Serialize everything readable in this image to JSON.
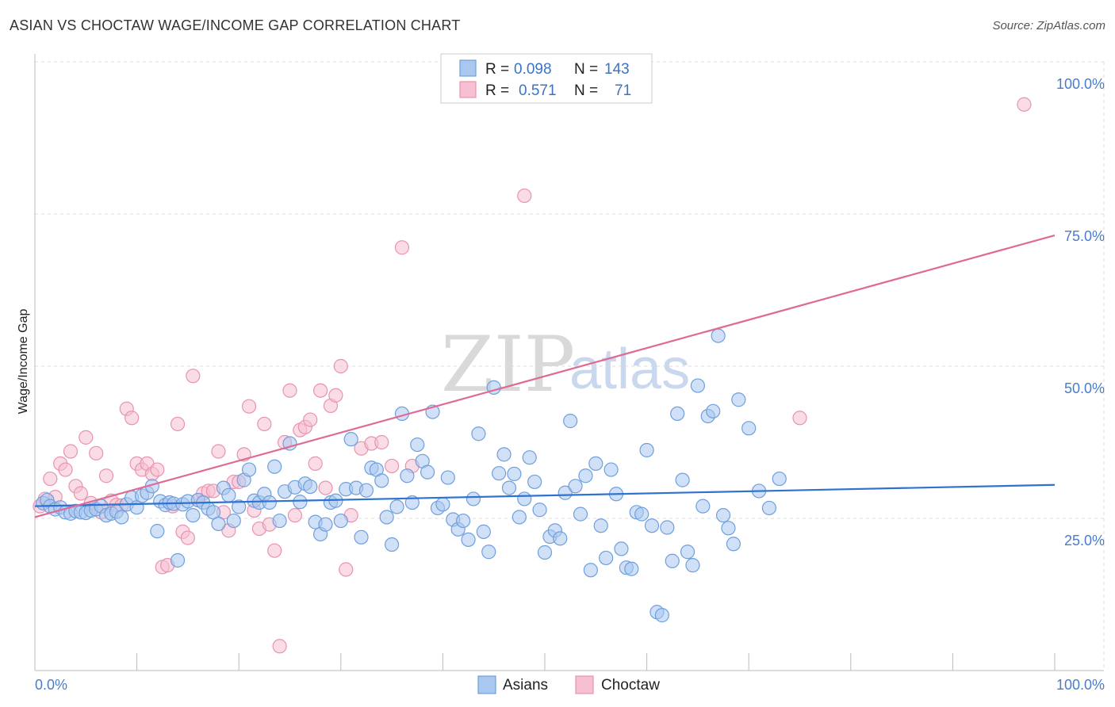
{
  "title": "ASIAN VS CHOCTAW WAGE/INCOME GAP CORRELATION CHART",
  "source": "Source: ZipAtlas.com",
  "watermark": {
    "zip": "ZIP",
    "atlas": "atlas"
  },
  "colors": {
    "asians_fill": "#a9c8f0",
    "asians_stroke": "#6f9fdc",
    "asians_line": "#2f72d0",
    "choctaw_fill": "#f6bfd2",
    "choctaw_stroke": "#e893b0",
    "choctaw_line": "#e06a96",
    "grid": "#dddddd",
    "tick_label": "#4a7cc9"
  },
  "legend_top": {
    "rows": [
      {
        "r_label": "R =",
        "r_value": "0.098",
        "n_label": "N =",
        "n_value": "143"
      },
      {
        "r_label": "R =",
        "r_value": "0.571",
        "n_label": "N =",
        "n_value": "71"
      }
    ]
  },
  "legend_bottom": {
    "asians": "Asians",
    "choctaw": "Choctaw"
  },
  "chart_data": {
    "type": "scatter",
    "title": "ASIAN VS CHOCTAW WAGE/INCOME GAP CORRELATION CHART",
    "xlabel": "",
    "ylabel": "Wage/Income Gap",
    "xlim": [
      0,
      100
    ],
    "ylim": [
      0,
      100
    ],
    "x_tick_labels": [
      "0.0%",
      "100.0%"
    ],
    "y_tick_labels": [
      "25.0%",
      "50.0%",
      "75.0%",
      "100.0%"
    ],
    "y_ticks": [
      25,
      50,
      75,
      100
    ],
    "grid": true,
    "legend_position": "top-center",
    "series": [
      {
        "name": "Asians",
        "r": 0.098,
        "n": 143,
        "trend": {
          "x": [
            0,
            100
          ],
          "y": [
            27.0,
            30.5
          ]
        },
        "points": [
          [
            0.8,
            27.5
          ],
          [
            1.2,
            28.0
          ],
          [
            1.5,
            27.0
          ],
          [
            2.0,
            26.5
          ],
          [
            2.5,
            26.8
          ],
          [
            3.0,
            26.0
          ],
          [
            3.5,
            25.8
          ],
          [
            4.0,
            26.2
          ],
          [
            4.5,
            26.0
          ],
          [
            5.0,
            25.9
          ],
          [
            5.5,
            26.3
          ],
          [
            6.0,
            26.5
          ],
          [
            6.5,
            27.0
          ],
          [
            7.0,
            25.5
          ],
          [
            7.5,
            25.8
          ],
          [
            8.0,
            26.1
          ],
          [
            8.5,
            25.2
          ],
          [
            9.0,
            27.3
          ],
          [
            9.5,
            28.4
          ],
          [
            10.0,
            26.8
          ],
          [
            10.5,
            28.7
          ],
          [
            11.0,
            29.2
          ],
          [
            11.5,
            30.3
          ],
          [
            12.0,
            22.9
          ],
          [
            12.3,
            27.8
          ],
          [
            12.8,
            27.2
          ],
          [
            13.2,
            27.6
          ],
          [
            13.6,
            27.4
          ],
          [
            14.0,
            18.1
          ],
          [
            14.5,
            27.3
          ],
          [
            15.0,
            27.8
          ],
          [
            15.5,
            25.5
          ],
          [
            16.0,
            28.0
          ],
          [
            16.5,
            27.6
          ],
          [
            17.0,
            26.6
          ],
          [
            17.5,
            26.0
          ],
          [
            18.0,
            24.1
          ],
          [
            18.5,
            30.0
          ],
          [
            19.0,
            28.8
          ],
          [
            19.5,
            24.6
          ],
          [
            20.0,
            26.9
          ],
          [
            20.5,
            31.3
          ],
          [
            21.0,
            33.0
          ],
          [
            21.5,
            27.9
          ],
          [
            22.0,
            27.6
          ],
          [
            22.5,
            29.0
          ],
          [
            23.0,
            27.6
          ],
          [
            23.5,
            33.5
          ],
          [
            24.0,
            24.6
          ],
          [
            24.5,
            29.4
          ],
          [
            25.0,
            37.3
          ],
          [
            25.5,
            30.1
          ],
          [
            26.0,
            27.7
          ],
          [
            26.5,
            30.7
          ],
          [
            27.0,
            30.2
          ],
          [
            27.5,
            24.4
          ],
          [
            28.0,
            22.4
          ],
          [
            28.5,
            24.0
          ],
          [
            29.0,
            27.6
          ],
          [
            29.5,
            27.9
          ],
          [
            30.0,
            24.6
          ],
          [
            30.5,
            29.8
          ],
          [
            31.0,
            38.0
          ],
          [
            31.5,
            30.0
          ],
          [
            32.0,
            21.9
          ],
          [
            32.5,
            29.6
          ],
          [
            33.0,
            33.3
          ],
          [
            33.5,
            33.0
          ],
          [
            34.0,
            31.2
          ],
          [
            34.5,
            25.2
          ],
          [
            35.0,
            20.7
          ],
          [
            35.5,
            26.9
          ],
          [
            36.0,
            42.2
          ],
          [
            36.5,
            32.0
          ],
          [
            37.0,
            27.6
          ],
          [
            37.5,
            37.1
          ],
          [
            38.0,
            34.4
          ],
          [
            38.5,
            32.6
          ],
          [
            39.0,
            42.5
          ],
          [
            39.5,
            26.7
          ],
          [
            40.0,
            27.3
          ],
          [
            40.5,
            31.7
          ],
          [
            41.0,
            24.8
          ],
          [
            41.5,
            23.2
          ],
          [
            42.0,
            24.6
          ],
          [
            42.5,
            21.5
          ],
          [
            43.0,
            28.2
          ],
          [
            43.5,
            38.9
          ],
          [
            44.0,
            22.8
          ],
          [
            44.5,
            19.5
          ],
          [
            45.0,
            46.5
          ],
          [
            45.5,
            32.4
          ],
          [
            46.0,
            35.5
          ],
          [
            46.5,
            30.0
          ],
          [
            47.0,
            32.3
          ],
          [
            47.5,
            25.2
          ],
          [
            48.0,
            28.2
          ],
          [
            48.5,
            35.0
          ],
          [
            49.0,
            31.0
          ],
          [
            49.5,
            26.4
          ],
          [
            50.0,
            19.4
          ],
          [
            50.5,
            22.0
          ],
          [
            51.0,
            23.0
          ],
          [
            51.5,
            21.7
          ],
          [
            52.0,
            29.2
          ],
          [
            52.5,
            41.0
          ],
          [
            53.0,
            30.3
          ],
          [
            53.5,
            25.7
          ],
          [
            54.0,
            32.0
          ],
          [
            54.5,
            16.5
          ],
          [
            55.0,
            34.0
          ],
          [
            55.5,
            23.8
          ],
          [
            56.0,
            18.5
          ],
          [
            56.5,
            33.0
          ],
          [
            57.0,
            29.0
          ],
          [
            57.5,
            20.0
          ],
          [
            58.0,
            16.9
          ],
          [
            58.5,
            16.7
          ],
          [
            59.0,
            26.0
          ],
          [
            59.5,
            25.7
          ],
          [
            60.0,
            36.2
          ],
          [
            60.5,
            23.8
          ],
          [
            61.0,
            9.6
          ],
          [
            61.5,
            9.1
          ],
          [
            62.0,
            23.5
          ],
          [
            62.5,
            18.0
          ],
          [
            63.0,
            42.2
          ],
          [
            63.5,
            31.3
          ],
          [
            64.0,
            19.5
          ],
          [
            64.5,
            17.3
          ],
          [
            65.0,
            46.8
          ],
          [
            65.5,
            27.0
          ],
          [
            66.0,
            41.8
          ],
          [
            66.5,
            42.6
          ],
          [
            67.0,
            55.0
          ],
          [
            67.5,
            25.5
          ],
          [
            68.0,
            23.4
          ],
          [
            68.5,
            20.8
          ],
          [
            69.0,
            44.5
          ],
          [
            70.0,
            39.8
          ],
          [
            71.0,
            29.5
          ],
          [
            72.0,
            26.7
          ],
          [
            73.0,
            31.5
          ]
        ]
      },
      {
        "name": "Choctaw",
        "r": 0.571,
        "n": 71,
        "trend": {
          "x": [
            0,
            100
          ],
          "y": [
            25.2,
            71.5
          ]
        },
        "points": [
          [
            0.5,
            27.0
          ],
          [
            1.0,
            28.2
          ],
          [
            1.5,
            31.5
          ],
          [
            2.0,
            28.5
          ],
          [
            2.5,
            34.0
          ],
          [
            3.0,
            33.0
          ],
          [
            3.5,
            36.0
          ],
          [
            4.0,
            30.3
          ],
          [
            4.5,
            29.1
          ],
          [
            5.0,
            38.3
          ],
          [
            5.5,
            27.5
          ],
          [
            6.0,
            35.7
          ],
          [
            6.5,
            26.0
          ],
          [
            7.0,
            32.0
          ],
          [
            7.5,
            27.9
          ],
          [
            8.0,
            27.2
          ],
          [
            8.5,
            27.1
          ],
          [
            9.0,
            43.0
          ],
          [
            9.5,
            41.5
          ],
          [
            10.0,
            34.0
          ],
          [
            10.5,
            33.0
          ],
          [
            11.0,
            34.0
          ],
          [
            11.5,
            32.3
          ],
          [
            12.0,
            33.0
          ],
          [
            12.5,
            17.0
          ],
          [
            13.0,
            17.3
          ],
          [
            13.5,
            27.0
          ],
          [
            14.0,
            40.5
          ],
          [
            14.5,
            22.8
          ],
          [
            15.0,
            21.8
          ],
          [
            15.5,
            48.4
          ],
          [
            16.0,
            28.0
          ],
          [
            16.5,
            29.1
          ],
          [
            17.0,
            29.5
          ],
          [
            17.5,
            29.5
          ],
          [
            18.0,
            36.0
          ],
          [
            18.5,
            26.0
          ],
          [
            19.0,
            23.0
          ],
          [
            19.5,
            31.0
          ],
          [
            20.0,
            31.0
          ],
          [
            20.5,
            35.5
          ],
          [
            21.0,
            43.4
          ],
          [
            21.5,
            26.3
          ],
          [
            22.0,
            23.3
          ],
          [
            22.5,
            40.5
          ],
          [
            23.0,
            24.0
          ],
          [
            23.5,
            19.7
          ],
          [
            24.0,
            4.0
          ],
          [
            24.5,
            37.5
          ],
          [
            25.0,
            46.0
          ],
          [
            25.5,
            25.5
          ],
          [
            26.0,
            39.5
          ],
          [
            26.5,
            40.0
          ],
          [
            27.0,
            41.2
          ],
          [
            27.5,
            34.0
          ],
          [
            28.0,
            46.0
          ],
          [
            28.5,
            30.0
          ],
          [
            29.0,
            43.5
          ],
          [
            29.5,
            45.2
          ],
          [
            30.0,
            50.0
          ],
          [
            30.5,
            16.6
          ],
          [
            31.0,
            25.5
          ],
          [
            32.0,
            36.5
          ],
          [
            33.0,
            37.3
          ],
          [
            34.0,
            37.5
          ],
          [
            35.0,
            33.6
          ],
          [
            36.0,
            69.5
          ],
          [
            37.0,
            33.6
          ],
          [
            48.0,
            78.0
          ],
          [
            75.0,
            41.5
          ],
          [
            97.0,
            93.0
          ]
        ]
      }
    ]
  }
}
